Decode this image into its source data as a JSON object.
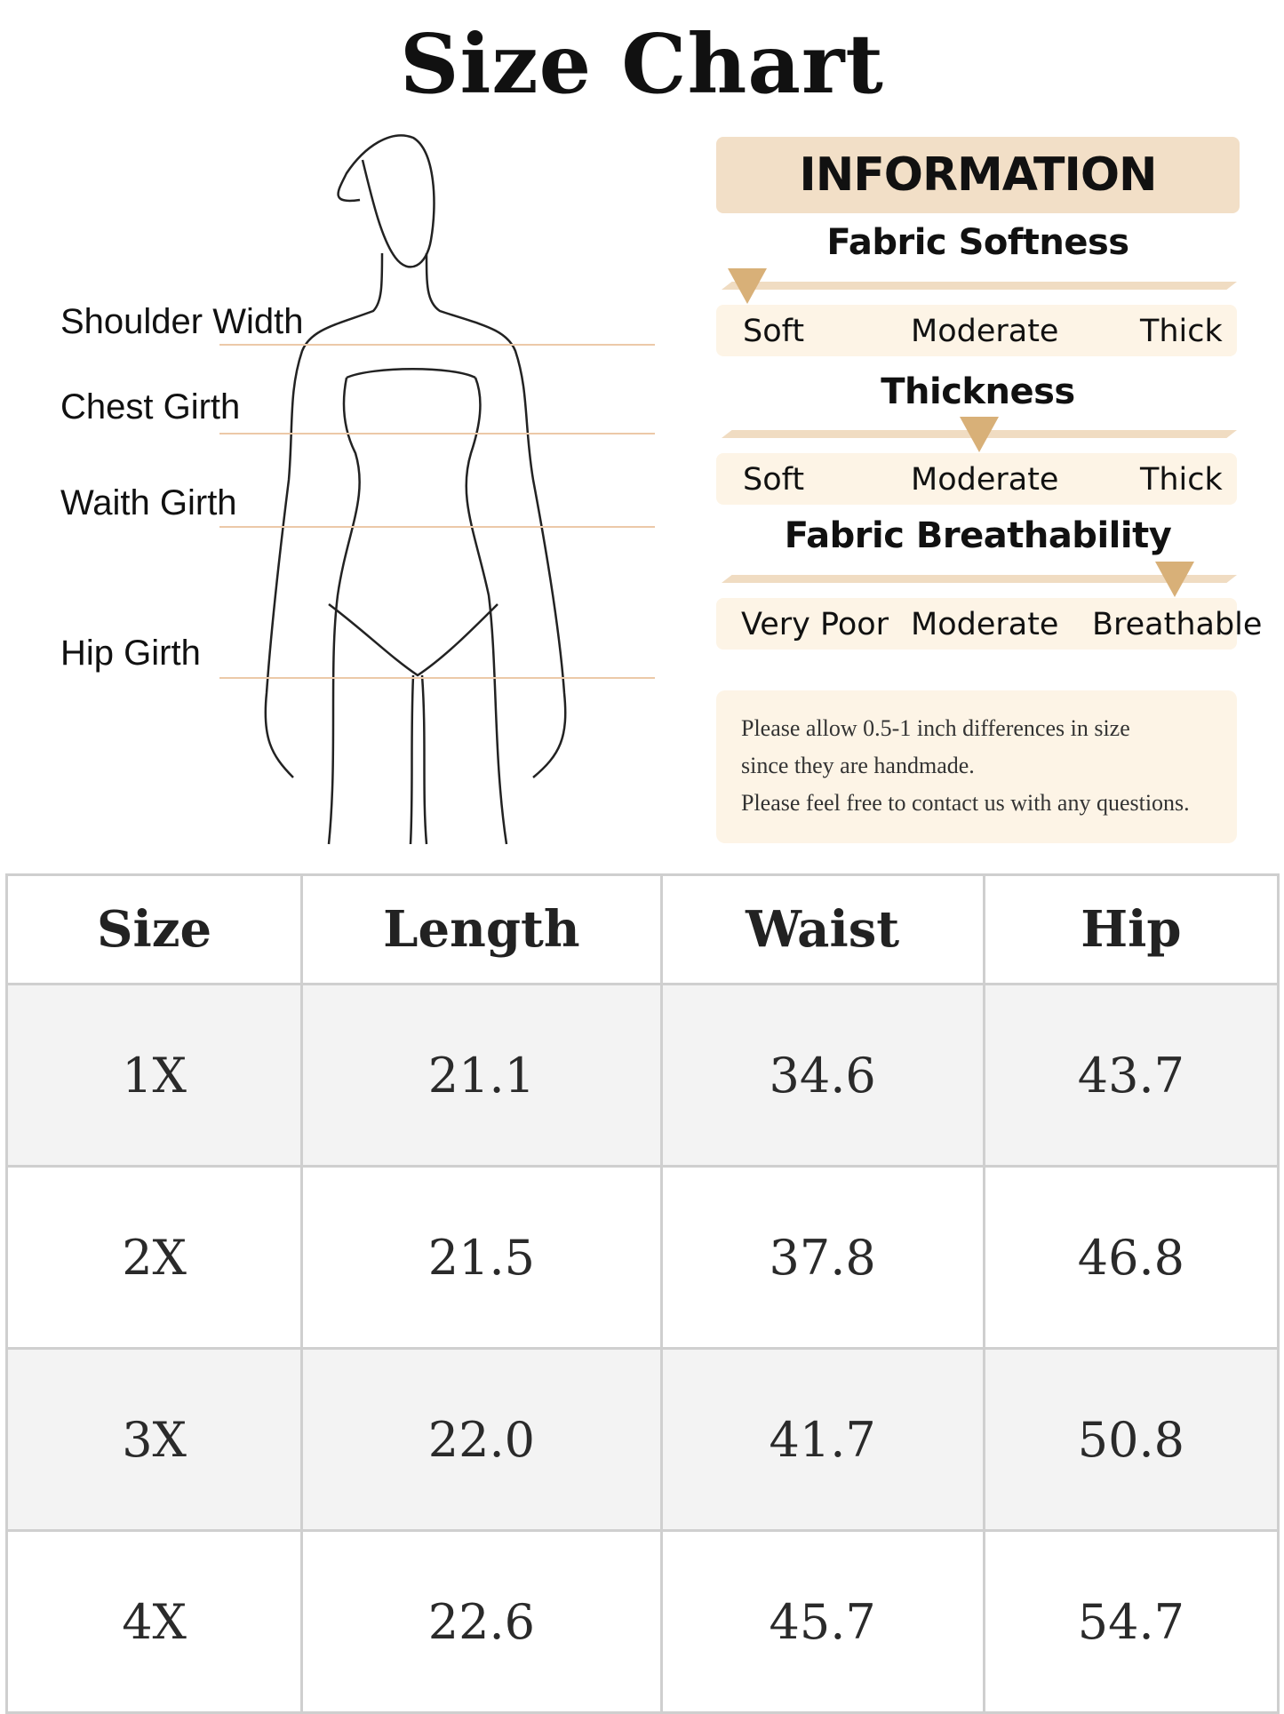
{
  "title": "Size Chart",
  "measurements": [
    "Shoulder Width",
    "Chest Girth",
    "Waith Girth",
    "Hip Girth"
  ],
  "info": {
    "heading": "INFORMATION",
    "accent_color": "#d8b078",
    "scales": [
      {
        "title": "Fabric Softness",
        "labels": [
          "Soft",
          "Moderate",
          "Thick"
        ],
        "level": 0.05
      },
      {
        "title": "Thickness",
        "labels": [
          "Soft",
          "Moderate",
          "Thick"
        ],
        "level": 0.5
      },
      {
        "title": "Fabric Breathability",
        "labels": [
          "Very Poor",
          "Moderate",
          "Breathable"
        ],
        "level": 0.88
      }
    ],
    "note": [
      "Please allow 0.5-1 inch differences in size",
      "since they are handmade.",
      "Please feel free to contact us with any questions."
    ]
  },
  "table": {
    "headers": [
      "Size",
      "Length",
      "Waist",
      "Hip"
    ],
    "rows": [
      [
        "1X",
        "21.1",
        "34.6",
        "43.7"
      ],
      [
        "2X",
        "21.5",
        "37.8",
        "46.8"
      ],
      [
        "3X",
        "22.0",
        "41.7",
        "50.8"
      ],
      [
        "4X",
        "22.6",
        "45.7",
        "54.7"
      ]
    ]
  }
}
